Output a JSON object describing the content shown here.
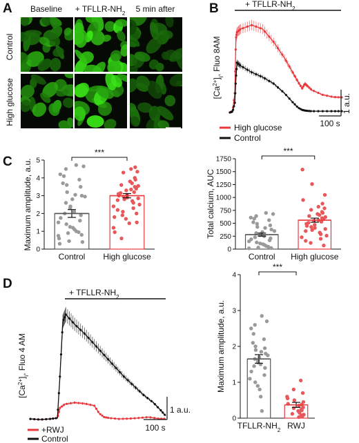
{
  "panels": {
    "A": {
      "label": "A",
      "col_headers": [
        "Baseline",
        "+ TFLLR-NH",
        "5 min after"
      ],
      "col_header_sub": "2",
      "row_headers": [
        "Control",
        "High glucose"
      ]
    }
  },
  "chart_data": [
    {
      "id": "B",
      "label": "B",
      "type": "line",
      "title": "",
      "stim_label": "+ TFLLR-NH",
      "stim_sub": "2",
      "ylabel_parts": [
        "[Ca",
        "2+",
        "]",
        "i",
        ", Fluo 8AM"
      ],
      "scale_y": "1 a.u.",
      "scale_x": "100 s",
      "legend_position": "bottom-left",
      "series": [
        {
          "name": "High glucose",
          "color": "#e8383c",
          "x": [
            0,
            10,
            18,
            22,
            26,
            40,
            80,
            120,
            160,
            200,
            230,
            250,
            265,
            275,
            285,
            300,
            340,
            380,
            410
          ],
          "y": [
            0.0,
            0.05,
            0.6,
            2.3,
            2.5,
            2.6,
            2.72,
            2.6,
            2.2,
            1.7,
            1.25,
            0.95,
            0.75,
            0.9,
            0.82,
            0.7,
            0.55,
            0.48,
            0.47
          ]
        },
        {
          "name": "Control",
          "color": "#111111",
          "x": [
            0,
            10,
            18,
            22,
            26,
            40,
            80,
            120,
            160,
            200,
            230,
            250,
            265,
            275,
            285,
            300,
            340,
            380,
            410
          ],
          "y": [
            0.0,
            0.03,
            0.3,
            1.05,
            1.55,
            1.45,
            1.25,
            1.1,
            0.9,
            0.6,
            0.32,
            0.15,
            0.08,
            0.06,
            0.05,
            0.04,
            0.04,
            0.04,
            0.04
          ]
        }
      ]
    },
    {
      "id": "C1",
      "label": "C",
      "type": "bar",
      "title": "",
      "categories": [
        "Control",
        "High glucose"
      ],
      "ylabel": "Maximum amplitude, a.u.",
      "ylim": [
        0,
        5
      ],
      "yticks": [
        "0",
        "1",
        "2",
        "3",
        "4",
        "5"
      ],
      "significance": "***",
      "bar_colors": [
        "#555555",
        "#e8383c"
      ],
      "dot_colors": [
        "#9a9a9a",
        "#e8575a"
      ],
      "values": [
        2.0,
        3.0
      ],
      "errors": [
        0.22,
        0.12
      ],
      "points": [
        [
          4.72,
          4.65,
          4.5,
          4.2,
          4.1,
          3.9,
          3.7,
          3.6,
          3.5,
          3.2,
          3.05,
          3.0,
          2.95,
          2.8,
          2.6,
          2.4,
          2.3,
          2.1,
          2.0,
          1.9,
          1.75,
          1.6,
          1.5,
          1.4,
          1.25,
          1.2,
          1.1,
          1.0,
          0.95,
          0.9,
          0.8,
          0.75,
          0.6,
          0.45,
          0.4,
          0.3
        ],
        [
          4.6,
          4.5,
          4.35,
          4.3,
          4.0,
          3.9,
          3.8,
          3.7,
          3.6,
          3.55,
          3.5,
          3.4,
          3.35,
          3.3,
          3.2,
          3.15,
          3.1,
          3.05,
          3.0,
          2.95,
          2.9,
          2.85,
          2.8,
          2.75,
          2.7,
          2.6,
          2.5,
          2.4,
          2.3,
          2.2,
          2.1,
          2.0,
          1.9,
          1.8,
          1.7,
          1.5,
          1.45,
          1.2,
          0.95,
          0.6
        ]
      ]
    },
    {
      "id": "C2",
      "label": "",
      "type": "bar",
      "title": "",
      "categories": [
        "Control",
        "High glucose"
      ],
      "ylabel": "Total calcium, AUC",
      "ylim": [
        0,
        1750
      ],
      "yticks": [
        "0",
        "250",
        "500",
        "750",
        "1000",
        "1250",
        "1500",
        "1750"
      ],
      "significance": "***",
      "bar_colors": [
        "#555555",
        "#e8383c"
      ],
      "dot_colors": [
        "#9a9a9a",
        "#e8575a"
      ],
      "values": [
        280,
        560
      ],
      "errors": [
        30,
        40
      ],
      "points": [
        [
          700,
          680,
          640,
          610,
          590,
          560,
          520,
          490,
          460,
          430,
          410,
          380,
          350,
          330,
          310,
          290,
          270,
          250,
          230,
          210,
          190,
          170,
          150,
          130,
          110,
          95,
          80,
          60,
          45,
          30,
          20,
          15
        ],
        [
          1540,
          1260,
          1050,
          950,
          880,
          820,
          790,
          760,
          720,
          700,
          680,
          660,
          640,
          620,
          600,
          580,
          560,
          550,
          530,
          510,
          490,
          470,
          450,
          430,
          410,
          390,
          370,
          350,
          320,
          290,
          260,
          230,
          200,
          160,
          120,
          70
        ]
      ]
    },
    {
      "id": "D1",
      "label": "D",
      "type": "line",
      "title": "",
      "stim_label": "+ TFLLR-NH",
      "stim_sub": "2",
      "ylabel_parts": [
        "[Ca",
        "2+",
        "]",
        "i",
        ", Fluo 4 AM"
      ],
      "scale_y": "1 a.u.",
      "scale_x": "100 s",
      "legend_position": "bottom-left",
      "series": [
        {
          "name": "+RWJ",
          "color": "#e8383c",
          "x": [
            0,
            20,
            40,
            55,
            60,
            70,
            90,
            110,
            130,
            140,
            150,
            160,
            180,
            200,
            220,
            240,
            260,
            275
          ],
          "y": [
            0.02,
            0.0,
            0.02,
            0.05,
            0.38,
            0.5,
            0.55,
            0.52,
            0.45,
            0.2,
            0.08,
            0.05,
            0.02,
            0.03,
            0.05,
            0.08,
            0.03,
            0.02
          ]
        },
        {
          "name": "Control",
          "color": "#111111",
          "x": [
            0,
            20,
            40,
            55,
            60,
            66,
            72,
            90,
            110,
            130,
            150,
            170,
            190,
            210,
            230,
            250,
            265,
            275
          ],
          "y": [
            0.02,
            0.0,
            0.02,
            0.05,
            1.4,
            3.2,
            3.42,
            3.1,
            2.8,
            2.45,
            2.1,
            1.75,
            1.4,
            1.1,
            0.8,
            0.55,
            0.3,
            0.12
          ]
        }
      ]
    },
    {
      "id": "D2",
      "label": "",
      "type": "bar",
      "title": "",
      "categories": [
        "TFLLR-NH",
        "RWJ"
      ],
      "category_sub": [
        "2",
        ""
      ],
      "ylabel": "Maximum amplitude, a.u.",
      "ylim": [
        0,
        4
      ],
      "yticks": [
        "0",
        "1",
        "2",
        "3",
        "4"
      ],
      "significance": "***",
      "bar_colors": [
        "#555555",
        "#e8383c"
      ],
      "dot_colors": [
        "#9a9a9a",
        "#e8575a"
      ],
      "values": [
        1.65,
        0.37
      ],
      "errors": [
        0.12,
        0.07
      ],
      "points": [
        [
          2.85,
          2.7,
          2.6,
          2.5,
          2.35,
          2.2,
          2.1,
          2.0,
          1.95,
          1.9,
          1.85,
          1.8,
          1.75,
          1.7,
          1.65,
          1.6,
          1.55,
          1.5,
          1.45,
          1.4,
          1.3,
          1.2,
          1.1,
          1.0,
          0.9,
          0.8,
          0.6,
          0.2
        ],
        [
          1.05,
          0.8,
          0.7,
          0.6,
          0.55,
          0.5,
          0.45,
          0.4,
          0.38,
          0.35,
          0.3,
          0.28,
          0.25,
          0.22,
          0.2,
          0.15,
          0.12,
          0.1,
          0.08,
          0.05,
          0.03
        ]
      ]
    }
  ]
}
